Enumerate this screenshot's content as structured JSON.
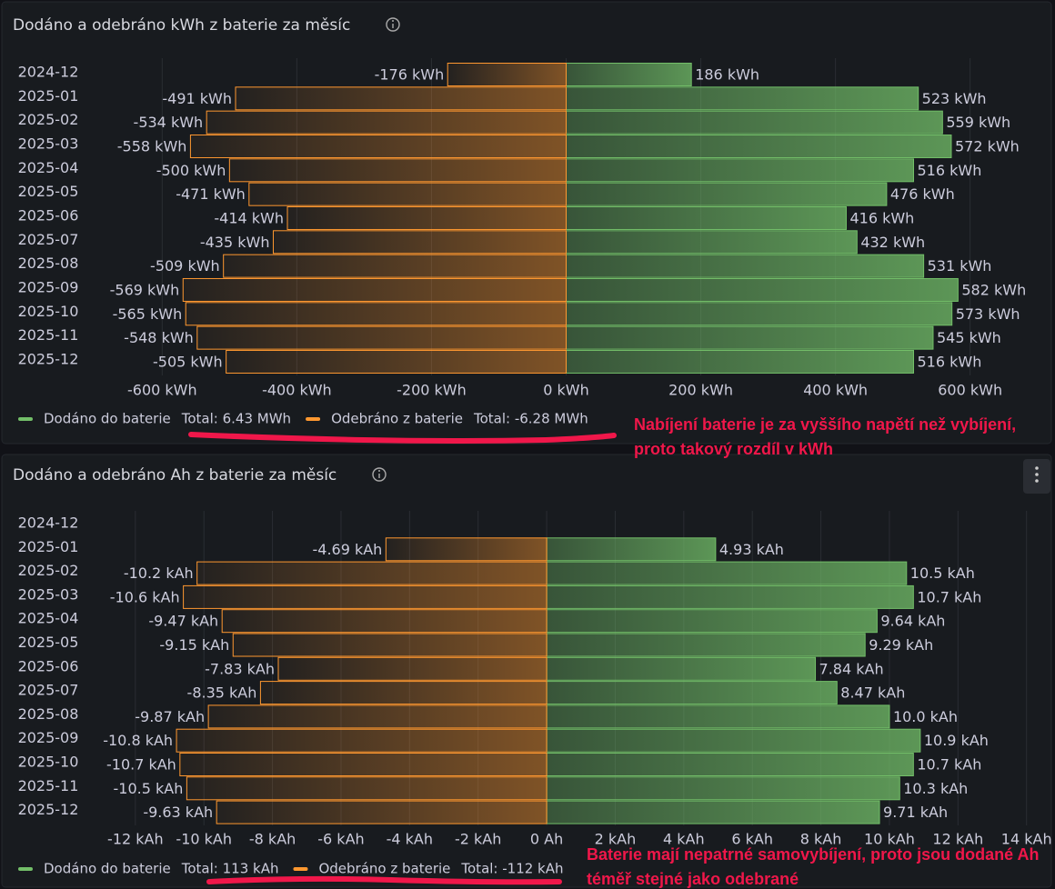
{
  "chart_data": [
    {
      "type": "bar",
      "orientation": "horizontal",
      "title": "Dodáno a odebráno kWh z baterie za měsíc",
      "categories": [
        "2024-12",
        "2025-01",
        "2025-02",
        "2025-03",
        "2025-04",
        "2025-05",
        "2025-06",
        "2025-07",
        "2025-08",
        "2025-09",
        "2025-10",
        "2025-11",
        "2025-12"
      ],
      "series": [
        {
          "name": "Dodáno do baterie",
          "color": "#73bf69",
          "total": "Total: 6.43 MWh",
          "values": [
            186,
            523,
            559,
            572,
            516,
            476,
            416,
            432,
            531,
            582,
            573,
            545,
            516
          ],
          "value_labels": [
            "186 kWh",
            "523 kWh",
            "559 kWh",
            "572 kWh",
            "516 kWh",
            "476 kWh",
            "416 kWh",
            "432 kWh",
            "531 kWh",
            "582 kWh",
            "573 kWh",
            "545 kWh",
            "516 kWh"
          ]
        },
        {
          "name": "Odebráno z baterie",
          "color": "#ff9830",
          "total": "Total: -6.28 MWh",
          "values": [
            -176,
            -491,
            -534,
            -558,
            -500,
            -471,
            -414,
            -435,
            -509,
            -569,
            -565,
            -548,
            -505
          ],
          "value_labels": [
            "-176 kWh",
            "-491 kWh",
            "-534 kWh",
            "-558 kWh",
            "-500 kWh",
            "-471 kWh",
            "-414 kWh",
            "-435 kWh",
            "-509 kWh",
            "-569 kWh",
            "-565 kWh",
            "-548 kWh",
            "-505 kWh"
          ]
        }
      ],
      "xlim": [
        -645,
        645
      ],
      "xticks": [
        {
          "value": -600,
          "label": "-600 kWh"
        },
        {
          "value": -400,
          "label": "-400 kWh"
        },
        {
          "value": -200,
          "label": "-200 kWh"
        },
        {
          "value": 0,
          "label": "0 kWh"
        },
        {
          "value": 200,
          "label": "200 kWh"
        },
        {
          "value": 400,
          "label": "400 kWh"
        },
        {
          "value": 600,
          "label": "600 kWh"
        }
      ],
      "grid": true,
      "annotation": [
        "Nabíjení baterie je za vyššího napětí než vybíjení,",
        "proto takový rozdíl v kWh"
      ]
    },
    {
      "type": "bar",
      "orientation": "horizontal",
      "title": "Dodáno a odebráno Ah z baterie za měsíc",
      "categories": [
        "2024-12",
        "2025-01",
        "2025-02",
        "2025-03",
        "2025-04",
        "2025-05",
        "2025-06",
        "2025-07",
        "2025-08",
        "2025-09",
        "2025-10",
        "2025-11",
        "2025-12"
      ],
      "series": [
        {
          "name": "Dodáno do baterie",
          "color": "#73bf69",
          "total": "Total: 113 kAh",
          "values": [
            null,
            4.93,
            10.5,
            10.7,
            9.64,
            9.29,
            7.84,
            8.47,
            10.0,
            10.9,
            10.7,
            10.3,
            9.71
          ],
          "value_labels": [
            null,
            "4.93 kAh",
            "10.5 kAh",
            "10.7 kAh",
            "9.64 kAh",
            "9.29 kAh",
            "7.84 kAh",
            "8.47 kAh",
            "10.0 kAh",
            "10.9 kAh",
            "10.7 kAh",
            "10.3 kAh",
            "9.71 kAh"
          ]
        },
        {
          "name": "Odebráno z baterie",
          "color": "#ff9830",
          "total": "Total: -112 kAh",
          "values": [
            null,
            -4.69,
            -10.2,
            -10.6,
            -9.47,
            -9.15,
            -7.83,
            -8.35,
            -9.87,
            -10.8,
            -10.7,
            -10.5,
            -9.63
          ],
          "value_labels": [
            null,
            "-4.69 kAh",
            "-10.2 kAh",
            "-10.6 kAh",
            "-9.47 kAh",
            "-9.15 kAh",
            "-7.83 kAh",
            "-8.35 kAh",
            "-9.87 kAh",
            "-10.8 kAh",
            "-10.7 kAh",
            "-10.5 kAh",
            "-9.63 kAh"
          ]
        }
      ],
      "xlim": [
        -12.5,
        14.3
      ],
      "xticks": [
        {
          "value": -12,
          "label": "-12 kAh"
        },
        {
          "value": -10,
          "label": "-10 kAh"
        },
        {
          "value": -8,
          "label": "-8 kAh"
        },
        {
          "value": -6,
          "label": "-6 kAh"
        },
        {
          "value": -4,
          "label": "-4 kAh"
        },
        {
          "value": -2,
          "label": "-2 kAh"
        },
        {
          "value": 0,
          "label": "0 Ah"
        },
        {
          "value": 2,
          "label": "2 kAh"
        },
        {
          "value": 4,
          "label": "4 kAh"
        },
        {
          "value": 6,
          "label": "6 kAh"
        },
        {
          "value": 8,
          "label": "8 kAh"
        },
        {
          "value": 10,
          "label": "10 kAh"
        },
        {
          "value": 12,
          "label": "12 kAh"
        },
        {
          "value": 14,
          "label": "14 kAh"
        }
      ],
      "grid": true,
      "annotation": [
        "Baterie mají nepatrné samovybíjení, proto jsou dodané Ah",
        "téměř stejné jako odebrané"
      ]
    }
  ]
}
